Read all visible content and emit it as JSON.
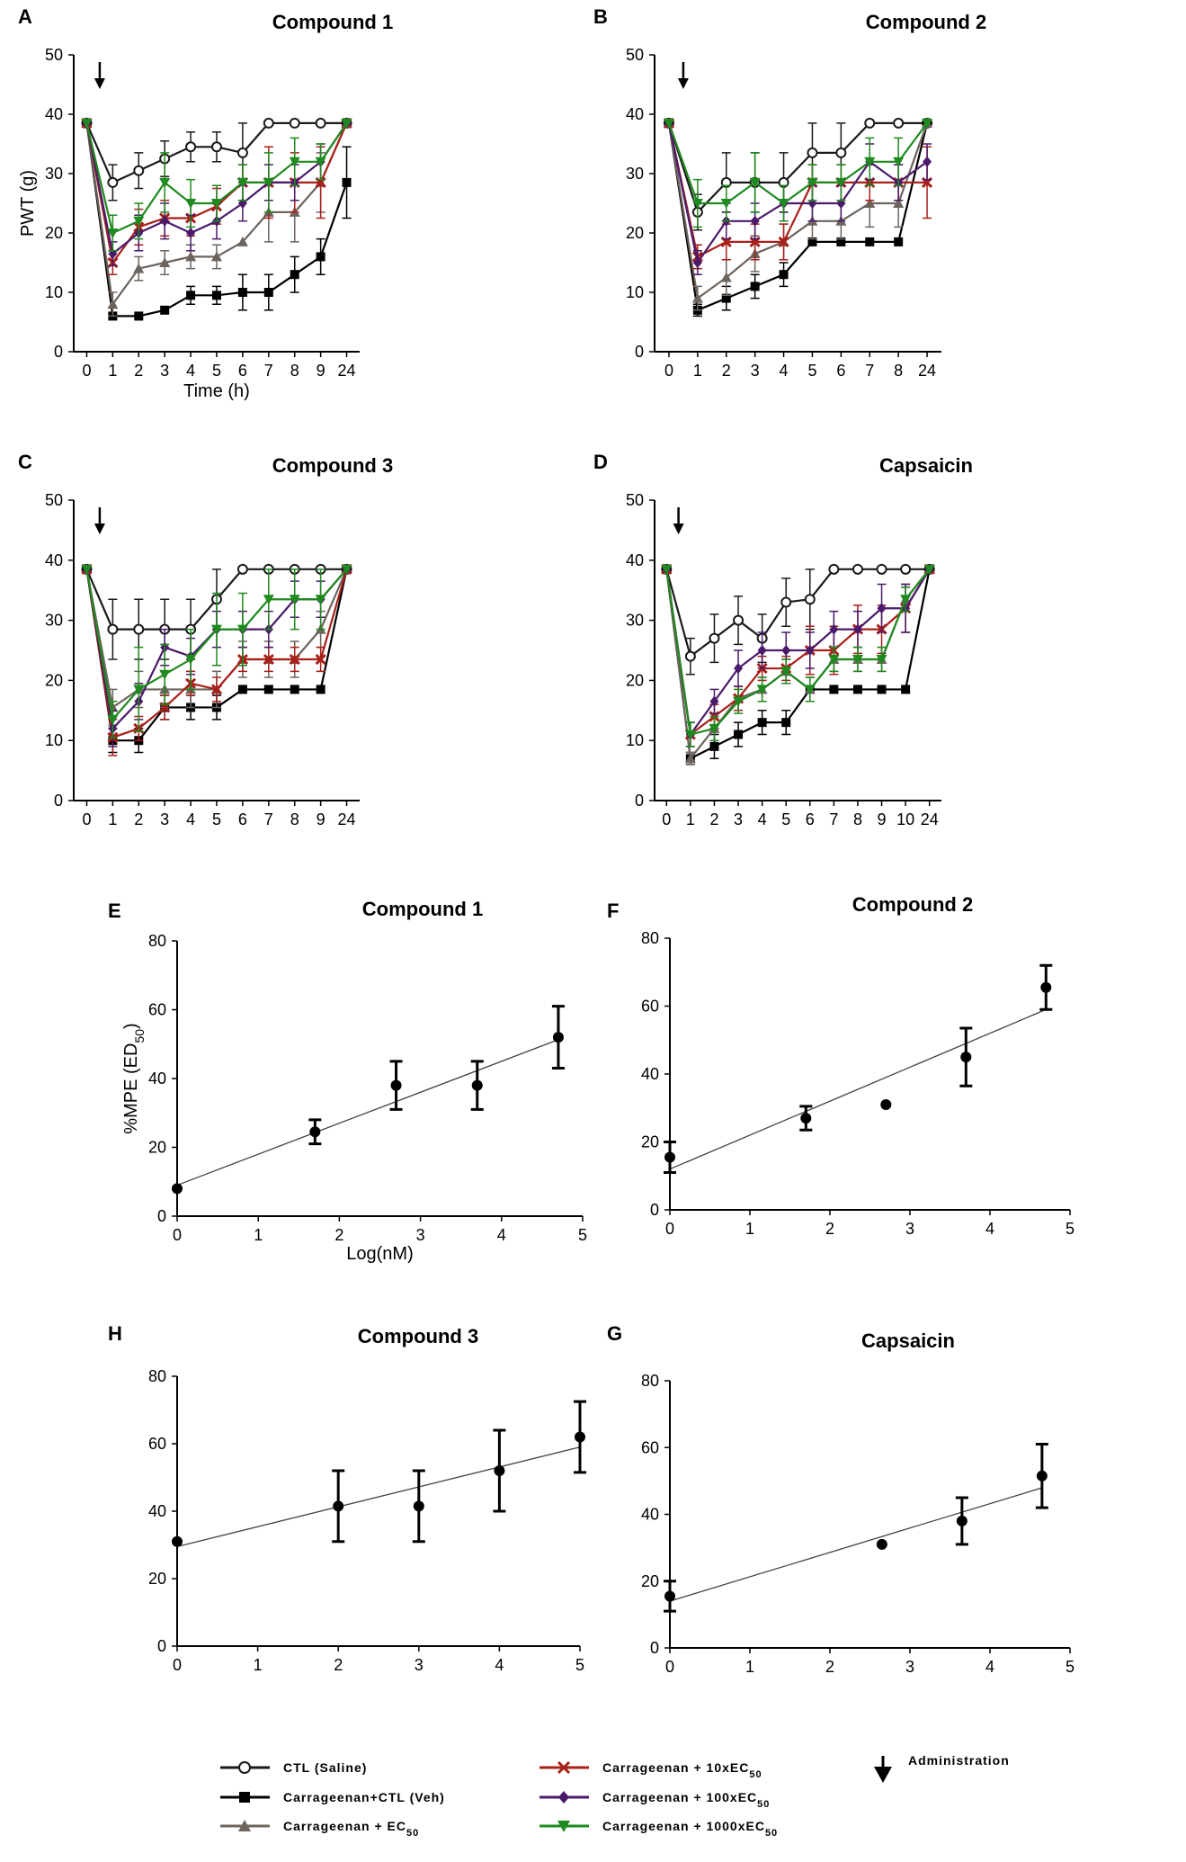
{
  "chart_data": [
    {
      "id": "A",
      "title": "Compound 1",
      "type": "line",
      "categories": [
        "0",
        "1",
        "2",
        "3",
        "4",
        "5",
        "6",
        "7",
        "8",
        "9",
        "24"
      ],
      "ylabel": "PWT (g)",
      "xlabel": "Time (h)",
      "ylim": [
        0,
        50
      ],
      "yticks": [
        0,
        10,
        20,
        30,
        40,
        50
      ],
      "arrow_at": 0.5,
      "series": [
        {
          "key": "ctl",
          "values": [
            38.5,
            28.5,
            30.5,
            32.5,
            34.5,
            34.5,
            33.5,
            38.5,
            38.5,
            38.5,
            38.5
          ],
          "err": [
            0,
            3,
            3,
            3,
            2.5,
            2.5,
            5,
            0,
            0,
            0,
            0
          ]
        },
        {
          "key": "veh",
          "values": [
            38.5,
            6,
            6,
            7,
            9.5,
            9.5,
            10,
            10,
            13,
            16,
            28.5
          ],
          "err": [
            0,
            0,
            0,
            0,
            1.5,
            1.5,
            3,
            3,
            3,
            3,
            6
          ]
        },
        {
          "key": "ec50",
          "values": [
            38.5,
            8,
            14,
            15,
            16,
            16,
            18.5,
            23.5,
            23.5,
            28.5,
            38.5
          ],
          "err": [
            0,
            2,
            2,
            2,
            2,
            2,
            0,
            5,
            5,
            5,
            0
          ]
        },
        {
          "key": "x10",
          "values": [
            38.5,
            15,
            21,
            22.5,
            22.5,
            24.5,
            28.5,
            28.5,
            28.5,
            28.5,
            38.5
          ],
          "err": [
            0,
            2,
            3,
            3,
            3,
            3,
            3,
            6,
            5,
            6,
            0
          ]
        },
        {
          "key": "x100",
          "values": [
            38.5,
            16.5,
            20,
            22,
            20,
            22,
            25,
            28.5,
            28.5,
            32,
            38.5
          ],
          "err": [
            0,
            2,
            3,
            3,
            3,
            3,
            3,
            3,
            3,
            3,
            0
          ]
        },
        {
          "key": "x1000",
          "values": [
            38.5,
            20,
            22,
            28.5,
            25,
            25,
            28.5,
            28.5,
            32,
            32,
            38.5
          ],
          "err": [
            0,
            3,
            3,
            5,
            4,
            3,
            3,
            5,
            4,
            3,
            0
          ]
        }
      ]
    },
    {
      "id": "B",
      "title": "Compound 2",
      "type": "line",
      "categories": [
        "0",
        "1",
        "2",
        "3",
        "4",
        "5",
        "6",
        "7",
        "8",
        "24"
      ],
      "ylabel": "",
      "xlabel": "",
      "ylim": [
        0,
        50
      ],
      "yticks": [
        0,
        10,
        20,
        30,
        40,
        50
      ],
      "arrow_at": 0.5,
      "series": [
        {
          "key": "ctl",
          "values": [
            38.5,
            23.5,
            28.5,
            28.5,
            28.5,
            33.5,
            33.5,
            38.5,
            38.5,
            38.5
          ],
          "err": [
            0,
            3,
            5,
            5,
            5,
            5,
            5,
            0,
            0,
            0
          ]
        },
        {
          "key": "veh",
          "values": [
            38.5,
            7,
            9,
            11,
            13,
            18.5,
            18.5,
            18.5,
            18.5,
            38.5
          ],
          "err": [
            0,
            1,
            2,
            2,
            2,
            0,
            0,
            0,
            0,
            0
          ]
        },
        {
          "key": "ec50",
          "values": [
            38.5,
            9,
            12.5,
            16.5,
            18.5,
            22,
            22,
            25,
            25,
            38.5
          ],
          "err": [
            0,
            2,
            3,
            3,
            3,
            3,
            3,
            4,
            4,
            0
          ]
        },
        {
          "key": "x10",
          "values": [
            38.5,
            16,
            18.5,
            18.5,
            18.5,
            28.5,
            28.5,
            28.5,
            28.5,
            28.5
          ],
          "err": [
            0,
            2,
            3,
            3,
            3,
            3,
            3,
            3,
            3,
            6
          ]
        },
        {
          "key": "x100",
          "values": [
            38.5,
            15,
            22,
            22,
            25,
            25,
            25,
            32,
            28.5,
            32
          ],
          "err": [
            0,
            2,
            3,
            3,
            3,
            3,
            3,
            3,
            3,
            3
          ]
        },
        {
          "key": "x1000",
          "values": [
            38.5,
            25,
            25,
            28.5,
            25,
            28.5,
            28.5,
            32,
            32,
            38.5
          ],
          "err": [
            0,
            4,
            3,
            5,
            3,
            3,
            3,
            4,
            4,
            0
          ]
        }
      ]
    },
    {
      "id": "C",
      "title": "Compound 3",
      "type": "line",
      "categories": [
        "0",
        "1",
        "2",
        "3",
        "4",
        "5",
        "6",
        "7",
        "8",
        "9",
        "24"
      ],
      "ylabel": "",
      "xlabel": "",
      "ylim": [
        0,
        50
      ],
      "yticks": [
        0,
        10,
        20,
        30,
        40,
        50
      ],
      "arrow_at": 0.5,
      "series": [
        {
          "key": "ctl",
          "values": [
            38.5,
            28.5,
            28.5,
            28.5,
            28.5,
            33.5,
            38.5,
            38.5,
            38.5,
            38.5,
            38.5
          ],
          "err": [
            0,
            5,
            5,
            5,
            5,
            5,
            0,
            0,
            0,
            0,
            0
          ]
        },
        {
          "key": "veh",
          "values": [
            38.5,
            10,
            10,
            15.5,
            15.5,
            15.5,
            18.5,
            18.5,
            18.5,
            18.5,
            38.5
          ],
          "err": [
            0,
            2,
            2,
            2,
            2,
            2,
            0,
            0,
            0,
            0,
            0
          ]
        },
        {
          "key": "ec50",
          "values": [
            38.5,
            15.5,
            18.5,
            18.5,
            18.5,
            18.5,
            23.5,
            23.5,
            23.5,
            28.5,
            38.5
          ],
          "err": [
            0,
            3,
            3,
            3,
            3,
            3,
            3,
            3,
            3,
            3,
            0
          ]
        },
        {
          "key": "x10",
          "values": [
            38.5,
            10.5,
            12,
            15.5,
            19.5,
            18.5,
            23.5,
            23.5,
            23.5,
            23.5,
            38.5
          ],
          "err": [
            0,
            3,
            2,
            2,
            2,
            2,
            2,
            2,
            2,
            2,
            0
          ]
        },
        {
          "key": "x100",
          "values": [
            38.5,
            12,
            16.5,
            25.5,
            24,
            28.5,
            28.5,
            28.5,
            33.5,
            33.5,
            38.5
          ],
          "err": [
            0,
            3,
            3,
            3,
            3,
            3,
            3,
            3,
            3,
            3,
            0
          ]
        },
        {
          "key": "x1000",
          "values": [
            38.5,
            13.5,
            18.5,
            21,
            23.5,
            28.5,
            28.5,
            33.5,
            33.5,
            33.5,
            38.5
          ],
          "err": [
            0,
            3,
            7,
            5,
            5,
            6,
            6,
            5,
            5,
            5,
            0
          ]
        }
      ]
    },
    {
      "id": "D",
      "title": "Capsaicin",
      "type": "line",
      "categories": [
        "0",
        "1",
        "2",
        "3",
        "4",
        "5",
        "6",
        "7",
        "8",
        "9",
        "10",
        "24"
      ],
      "ylabel": "",
      "xlabel": "",
      "ylim": [
        0,
        50
      ],
      "yticks": [
        0,
        10,
        20,
        30,
        40,
        50
      ],
      "arrow_at": 0.5,
      "series": [
        {
          "key": "ctl",
          "values": [
            38.5,
            24,
            27,
            30,
            27,
            33,
            33.5,
            38.5,
            38.5,
            38.5,
            38.5,
            38.5
          ],
          "err": [
            0,
            3,
            4,
            4,
            4,
            4,
            5,
            0,
            0,
            0,
            0,
            0
          ]
        },
        {
          "key": "veh",
          "values": [
            38.5,
            7,
            9,
            11,
            13,
            13,
            18.5,
            18.5,
            18.5,
            18.5,
            18.5,
            38.5
          ],
          "err": [
            0,
            1,
            2,
            2,
            2,
            2,
            0,
            0,
            0,
            0,
            0,
            0
          ]
        },
        {
          "key": "ec50",
          "values": [
            38.5,
            7,
            12,
            17,
            18.5,
            21.5,
            18.5,
            23.5,
            23.5,
            23.5,
            33.5,
            38.5
          ],
          "err": [
            0,
            1,
            2,
            2,
            2,
            2,
            2,
            2,
            2,
            2,
            2,
            0
          ]
        },
        {
          "key": "x10",
          "values": [
            38.5,
            11,
            14,
            17,
            22,
            22,
            25,
            25,
            28.5,
            28.5,
            32,
            38.5
          ],
          "err": [
            0,
            2,
            2,
            2,
            2,
            2,
            4,
            4,
            4,
            4,
            4,
            0
          ]
        },
        {
          "key": "x100",
          "values": [
            38.5,
            11,
            16.5,
            22,
            25,
            25,
            25,
            28.5,
            28.5,
            32,
            32,
            38.5
          ],
          "err": [
            0,
            2,
            2,
            3,
            3,
            3,
            3,
            3,
            3,
            4,
            4,
            0
          ]
        },
        {
          "key": "x1000",
          "values": [
            38.5,
            11,
            12,
            16.5,
            18.5,
            21.5,
            18.5,
            23.5,
            23.5,
            23.5,
            33.5,
            38.5
          ],
          "err": [
            0,
            2,
            2,
            2,
            2,
            2,
            2,
            2,
            2,
            2,
            2,
            0
          ]
        }
      ]
    },
    {
      "id": "E",
      "title": "Compound 1",
      "type": "scatter",
      "xlabel": "Log(nM)",
      "ylabel": "%MPE (ED50)",
      "xlim": [
        0,
        5
      ],
      "ylim": [
        0,
        80
      ],
      "xticks": [
        0,
        1,
        2,
        3,
        4,
        5
      ],
      "yticks": [
        0,
        20,
        40,
        60,
        80
      ],
      "x": [
        0,
        1.7,
        2.7,
        3.7,
        4.7
      ],
      "y": [
        8,
        24.5,
        38,
        38,
        52
      ],
      "err": [
        0,
        3.5,
        7,
        7,
        9
      ],
      "fit": {
        "intercept": 9,
        "slope": 9
      }
    },
    {
      "id": "F",
      "title": "Compound 2",
      "type": "scatter",
      "xlabel": "",
      "ylabel": "",
      "xlim": [
        0,
        5
      ],
      "ylim": [
        0,
        80
      ],
      "xticks": [
        0,
        1,
        2,
        3,
        4,
        5
      ],
      "yticks": [
        0,
        20,
        40,
        60,
        80
      ],
      "x": [
        0,
        1.7,
        2.7,
        3.7,
        4.7
      ],
      "y": [
        15.5,
        27,
        31,
        45,
        65.5
      ],
      "err": [
        4.5,
        3.5,
        0,
        8.5,
        6.5
      ],
      "fit": {
        "intercept": 12,
        "slope": 10
      }
    },
    {
      "id": "H",
      "title": "Compound 3",
      "type": "scatter",
      "xlabel": "",
      "ylabel": "",
      "xlim": [
        0,
        5
      ],
      "ylim": [
        0,
        80
      ],
      "xticks": [
        0,
        1,
        2,
        3,
        4,
        5
      ],
      "yticks": [
        0,
        20,
        40,
        60,
        80
      ],
      "x": [
        0,
        2,
        3,
        4,
        5
      ],
      "y": [
        31,
        41.5,
        41.5,
        52,
        62
      ],
      "err": [
        0,
        10.5,
        10.5,
        12,
        10.5
      ],
      "fit": {
        "intercept": 29.5,
        "slope": 5.9
      }
    },
    {
      "id": "G",
      "title": "Capsaicin",
      "type": "scatter",
      "xlabel": "",
      "ylabel": "",
      "xlim": [
        0,
        5
      ],
      "ylim": [
        0,
        80
      ],
      "xticks": [
        0,
        1,
        2,
        3,
        4,
        5
      ],
      "yticks": [
        0,
        20,
        40,
        60,
        80
      ],
      "x": [
        0,
        2.65,
        3.65,
        4.65
      ],
      "y": [
        15.5,
        31,
        38,
        51.5
      ],
      "err": [
        4.5,
        0,
        7,
        9.5
      ],
      "fit": {
        "intercept": 14,
        "slope": 7.3
      }
    }
  ],
  "legend": {
    "items": [
      {
        "key": "ctl",
        "label": "CTL (Saline)",
        "color": "#1a1a1a",
        "marker": "open-circle"
      },
      {
        "key": "veh",
        "label": "Carrageenan+CTL (Veh)",
        "color": "#000000",
        "marker": "square"
      },
      {
        "key": "ec50",
        "label": "Carrageenan + EC",
        "sub": "50",
        "color": "#6d645e",
        "marker": "triangle-up"
      },
      {
        "key": "x10",
        "label": "Carrageenan + 10xEC",
        "sub": "50",
        "color": "#a8201a",
        "marker": "x"
      },
      {
        "key": "x100",
        "label": "Carrageenan + 100xEC",
        "sub": "50",
        "color": "#4b1a6b",
        "marker": "diamond"
      },
      {
        "key": "x1000",
        "label": "Carrageenan + 1000xEC",
        "sub": "50",
        "color": "#1f8a1f",
        "marker": "triangle-down"
      }
    ],
    "administration_label": "Administration"
  }
}
